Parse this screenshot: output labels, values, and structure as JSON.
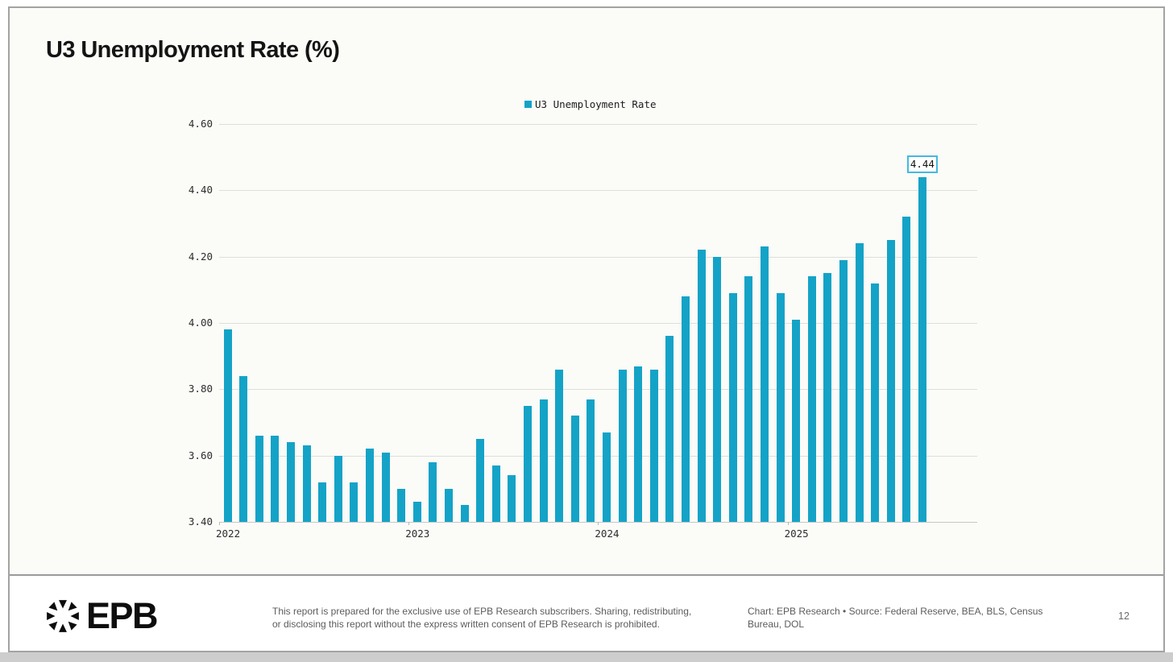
{
  "colors": {
    "bar": "#14a3c7",
    "callout_border": "#45b9e0",
    "logo": "#0d0d0d",
    "gridline": "#dededb"
  },
  "chart_data": {
    "type": "bar",
    "title": "U3 Unemployment Rate (%)",
    "series_name": "U3 Unemployment Rate",
    "legend_position": "top-center",
    "grid": "horizontal",
    "ylim": [
      3.4,
      4.6
    ],
    "y_ticks": [
      "4.60",
      "4.40",
      "4.20",
      "4.00",
      "3.80",
      "3.60",
      "3.40"
    ],
    "year_ticks": [
      {
        "label": "2022",
        "month_index": 0
      },
      {
        "label": "2023",
        "month_index": 12
      },
      {
        "label": "2024",
        "month_index": 24
      },
      {
        "label": "2025",
        "month_index": 36
      }
    ],
    "months": [
      "2022-01",
      "2022-02",
      "2022-03",
      "2022-04",
      "2022-05",
      "2022-06",
      "2022-07",
      "2022-08",
      "2022-09",
      "2022-10",
      "2022-11",
      "2022-12",
      "2023-01",
      "2023-02",
      "2023-03",
      "2023-04",
      "2023-05",
      "2023-06",
      "2023-07",
      "2023-08",
      "2023-09",
      "2023-10",
      "2023-11",
      "2023-12",
      "2024-01",
      "2024-02",
      "2024-03",
      "2024-04",
      "2024-05",
      "2024-06",
      "2024-07",
      "2024-08",
      "2024-09",
      "2024-10",
      "2024-11",
      "2024-12",
      "2025-01",
      "2025-02",
      "2025-03",
      "2025-04",
      "2025-05",
      "2025-06",
      "2025-07",
      "2025-08",
      "2025-09"
    ],
    "values": [
      3.98,
      3.84,
      3.66,
      3.66,
      3.64,
      3.63,
      3.52,
      3.6,
      3.52,
      3.62,
      3.61,
      3.5,
      3.46,
      3.58,
      3.5,
      3.45,
      3.65,
      3.57,
      3.54,
      3.75,
      3.77,
      3.86,
      3.72,
      3.77,
      3.67,
      3.86,
      3.87,
      3.86,
      3.96,
      4.08,
      4.22,
      4.2,
      4.09,
      4.14,
      4.23,
      4.09,
      4.01,
      4.14,
      4.15,
      4.19,
      4.24,
      4.12,
      4.25,
      4.32,
      4.44
    ],
    "last_value_label": "4.44"
  },
  "slide": {
    "page_number": "12",
    "footer": {
      "logo_text": "EPB",
      "disclaimer": "This report is prepared for the exclusive use of EPB Research subscribers. Sharing, redistributing,\nor disclosing this report without the express written consent of EPB Research is prohibited.",
      "source_line": "Chart: EPB Research • Source: Federal Reserve, BEA, BLS, Census\nBureau, DOL"
    }
  }
}
